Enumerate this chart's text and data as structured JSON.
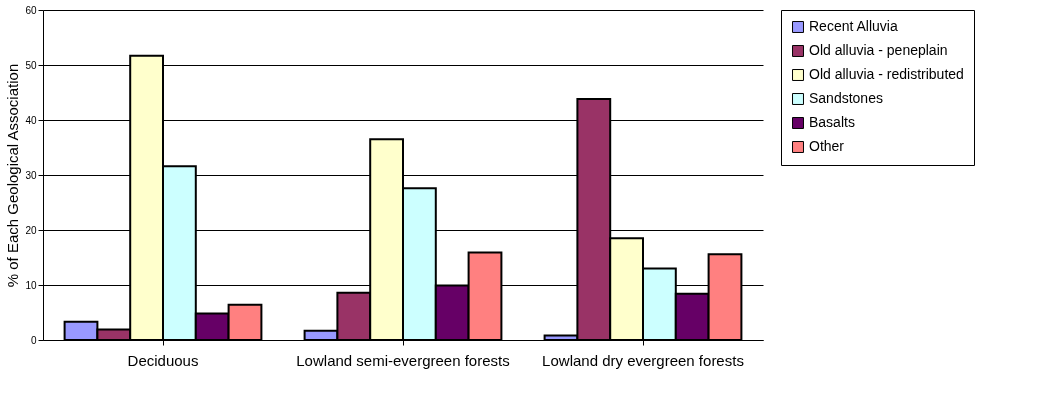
{
  "chart_data": {
    "type": "bar",
    "ylabel": "% of Each Geological Association",
    "categories": [
      "Deciduous",
      "Lowland semi-evergreen forests",
      "Lowland dry evergreen forests"
    ],
    "series": [
      {
        "name": "Recent Alluvia",
        "color": "#9999ff",
        "values": [
          3.3,
          1.7,
          0.8
        ]
      },
      {
        "name": "Old alluvia - peneplain",
        "color": "#993366",
        "values": [
          1.9,
          8.6,
          43.8
        ]
      },
      {
        "name": "Old alluvia - redistributed",
        "color": "#ffffcc",
        "values": [
          51.7,
          36.5,
          18.5
        ]
      },
      {
        "name": "Sandstones",
        "color": "#ccffff",
        "values": [
          31.6,
          27.6,
          13.0
        ]
      },
      {
        "name": "Basalts",
        "color": "#660066",
        "values": [
          4.8,
          9.9,
          8.4
        ]
      },
      {
        "name": "Other",
        "color": "#ff8080",
        "values": [
          6.4,
          15.9,
          15.6
        ]
      }
    ],
    "ylim": [
      0,
      60
    ],
    "yticks": [
      0,
      10,
      20,
      30,
      40,
      50,
      60
    ],
    "grid": "y",
    "legend": "right"
  }
}
